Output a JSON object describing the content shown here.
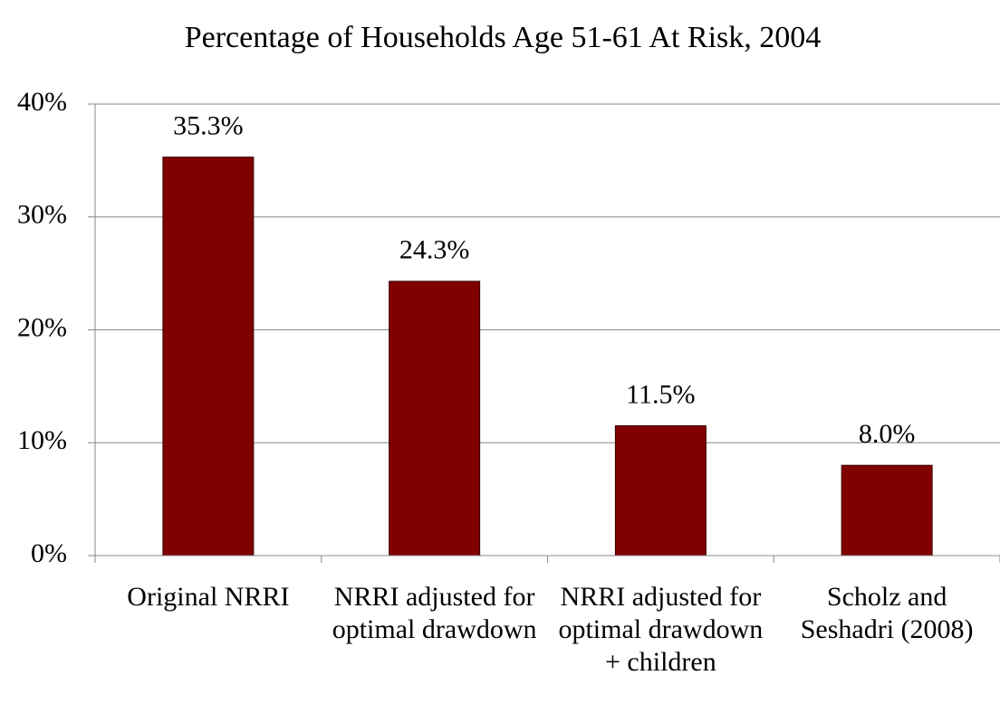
{
  "chart_data": {
    "type": "bar",
    "title": "Percentage of Households Age 51-61 At Risk, 2004",
    "categories": [
      "Original NRRI",
      "NRRI adjusted for optimal drawdown",
      "NRRI adjusted for optimal drawdown + children",
      "Scholz and Seshadri (2008)"
    ],
    "values": [
      35.3,
      24.3,
      11.5,
      8.0
    ],
    "value_labels": [
      "35.3%",
      "24.3%",
      "11.5%",
      "8.0%"
    ],
    "color": "#800000",
    "ylim": [
      0,
      40
    ],
    "yticks": [
      {
        "value": 0,
        "label": "0%"
      },
      {
        "value": 10,
        "label": "10%"
      },
      {
        "value": 20,
        "label": "20%"
      },
      {
        "value": 30,
        "label": "30%"
      },
      {
        "value": 40,
        "label": "40%"
      }
    ],
    "grid": true
  }
}
